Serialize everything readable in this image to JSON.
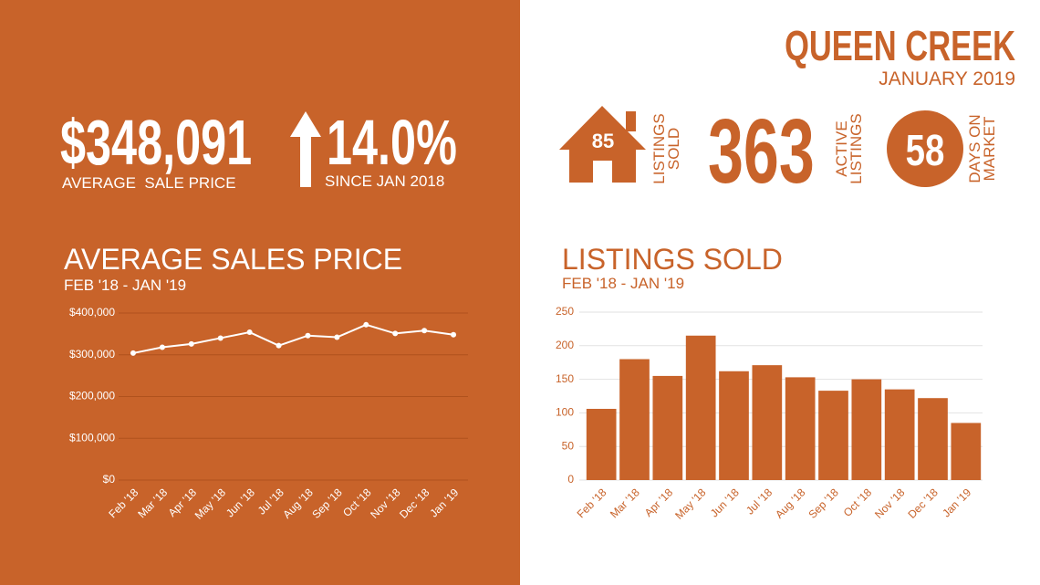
{
  "header": {
    "title": "QUEEN CREEK",
    "subtitle": "JANUARY 2019"
  },
  "stats": {
    "average_sale_price": {
      "value": "$348,091",
      "label": "AVERAGE  SALE PRICE"
    },
    "change": {
      "value": "14.0%",
      "label": "SINCE JAN 2018"
    },
    "listings_sold": {
      "value": "85",
      "label": [
        "LISTINGS",
        "SOLD"
      ]
    },
    "active_listings": {
      "value": "363",
      "label": [
        "ACTIVE",
        "LISTINGS"
      ]
    },
    "days_on_market": {
      "value": "58",
      "label": [
        "DAYS ON",
        "MARKET"
      ]
    }
  },
  "chart_data": [
    {
      "type": "line",
      "title": "AVERAGE SALES PRICE",
      "subtitle": "FEB '18 - JAN '19",
      "categories": [
        "Feb '18",
        "Mar '18",
        "Apr '18",
        "May '18",
        "Jun '18",
        "Jul '18",
        "Aug '18",
        "Sep '18",
        "Oct '18",
        "Nov '18",
        "Dec '18",
        "Jan '19"
      ],
      "values": [
        304000,
        318000,
        326000,
        340000,
        354000,
        322000,
        346000,
        342000,
        372000,
        351000,
        358000,
        348091
      ],
      "color": "#ffffff",
      "ylim": [
        0,
        400000
      ],
      "yticks": [
        {
          "value": 0,
          "label": "$0"
        },
        {
          "value": 100000,
          "label": "$100,000"
        },
        {
          "value": 200000,
          "label": "$200,000"
        },
        {
          "value": 300000,
          "label": "$300,000"
        },
        {
          "value": 400000,
          "label": "$400,000"
        }
      ],
      "grid": true
    },
    {
      "type": "bar",
      "title": "LISTINGS SOLD",
      "subtitle": "FEB '18 - JAN '19",
      "categories": [
        "Feb '18",
        "Mar '18",
        "Apr '18",
        "May '18",
        "Jun '18",
        "Jul '18",
        "Aug '18",
        "Sep '18",
        "Oct '18",
        "Nov '18",
        "Dec '18",
        "Jan '19"
      ],
      "values": [
        106,
        180,
        155,
        215,
        162,
        171,
        153,
        133,
        150,
        135,
        122,
        85
      ],
      "color": "#c8632a",
      "ylim": [
        0,
        250
      ],
      "yticks": [
        0,
        50,
        100,
        150,
        200,
        250
      ],
      "grid": true
    }
  ]
}
